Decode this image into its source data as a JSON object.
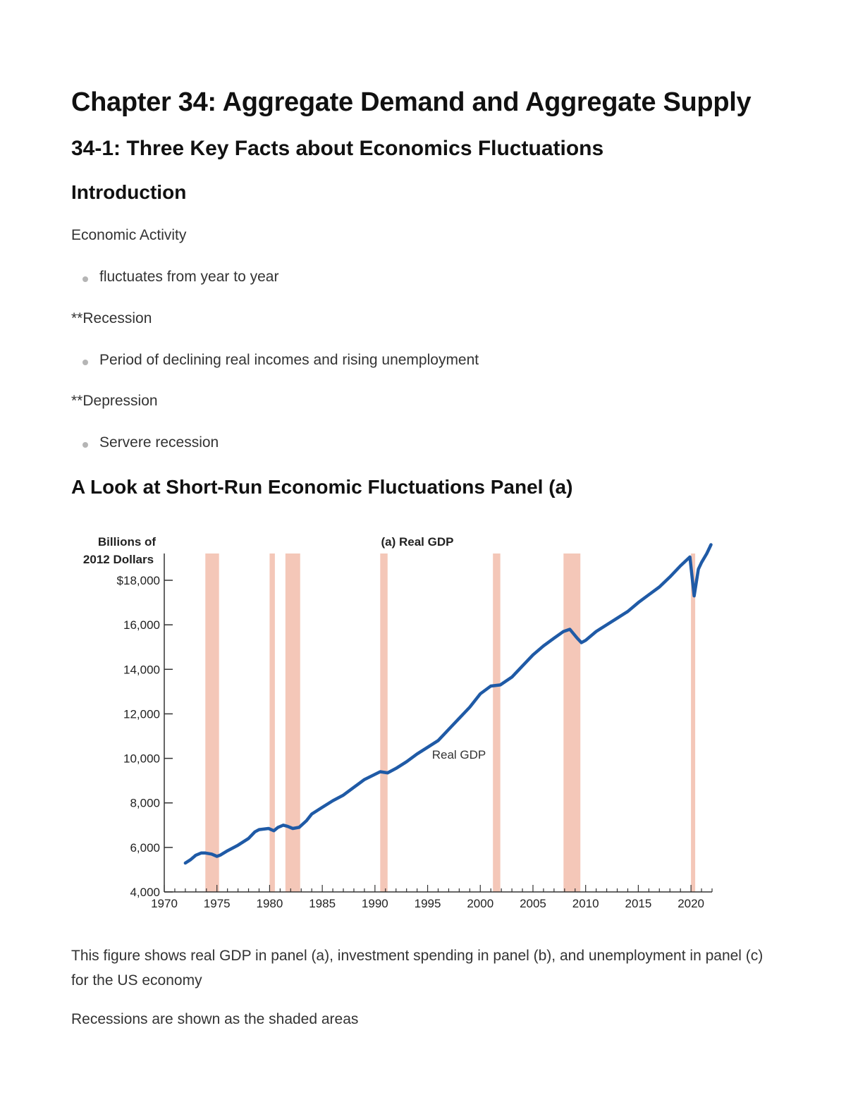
{
  "document": {
    "title": "Chapter 34: Aggregate Demand and Aggregate Supply",
    "section": "34-1: Three Key Facts about Economics Fluctuations",
    "subsection": "Introduction",
    "blocks": [
      {
        "term": "Economic Activity",
        "bullet": "fluctuates from year to year"
      },
      {
        "term": "**Recession",
        "bullet": "Period of declining real incomes and rising unemployment"
      },
      {
        "term": "**Depression",
        "bullet": "Servere recession"
      }
    ],
    "figure_heading": "A Look at Short-Run Economic Fluctuations Panel (a)",
    "caption": "This figure shows real GDP in panel (a), investment spending in panel (b), and unemployment in panel (c) for the US economy",
    "note": "Recessions are shown as the shaded areas"
  },
  "chart_data": {
    "type": "line",
    "title": "(a) Real GDP",
    "ylabel": [
      "Billions of",
      "2012 Dollars"
    ],
    "series_label": "Real GDP",
    "xlim": [
      1970,
      2022
    ],
    "ylim": [
      4000,
      19000
    ],
    "x_ticks": [
      1970,
      1975,
      1980,
      1985,
      1990,
      1995,
      2000,
      2005,
      2010,
      2015,
      2020
    ],
    "x_tick_labels": [
      "1970",
      "1975",
      "1980",
      "1985",
      "1990",
      "1995",
      "2000",
      "2005",
      "2010",
      "2015",
      "2020"
    ],
    "y_ticks": [
      4000,
      6000,
      8000,
      10000,
      12000,
      14000,
      16000,
      18000
    ],
    "y_tick_labels": [
      "4,000",
      "6,000",
      "8,000",
      "10,000",
      "12,000",
      "14,000",
      "16,000",
      "$18,000"
    ],
    "recessions": [
      [
        1973.9,
        1975.2
      ],
      [
        1980.0,
        1980.5
      ],
      [
        1981.5,
        1982.9
      ],
      [
        1990.5,
        1991.2
      ],
      [
        2001.2,
        2001.9
      ],
      [
        2007.9,
        2009.5
      ],
      [
        2020.0,
        2020.4
      ]
    ],
    "line_color": "#1f5aa6",
    "recession_color": "#f4c7b8",
    "series": [
      {
        "x": [
          1972.0,
          1972.5,
          1973.0,
          1973.5,
          1973.9,
          1974.5,
          1975.0,
          1975.3,
          1976.0,
          1977.0,
          1978.0,
          1978.6,
          1979.0,
          1979.9,
          1980.4,
          1980.8,
          1981.3,
          1981.7,
          1982.2,
          1982.8,
          1983.5,
          1984.0,
          1985.0,
          1986.0,
          1987.0,
          1988.0,
          1989.0,
          1990.5,
          1991.2,
          1992.0,
          1993.0,
          1994.0,
          1995.0,
          1996.0,
          1997.0,
          1998.0,
          1999.0,
          2000.0,
          2001.0,
          2001.9,
          2003.0,
          2004.0,
          2005.0,
          2006.0,
          2007.0,
          2007.9,
          2008.5,
          2009.2,
          2009.6,
          2010.0,
          2011.0,
          2012.0,
          2013.0,
          2014.0,
          2015.0,
          2016.0,
          2017.0,
          2018.0,
          2019.0,
          2019.9,
          2020.3,
          2020.7,
          2021.0,
          2021.5,
          2021.9
        ],
        "y": [
          5300,
          5450,
          5650,
          5750,
          5750,
          5700,
          5600,
          5650,
          5850,
          6100,
          6400,
          6700,
          6800,
          6850,
          6750,
          6900,
          7000,
          6950,
          6850,
          6900,
          7200,
          7500,
          7800,
          8100,
          8350,
          8700,
          9050,
          9400,
          9350,
          9550,
          9850,
          10200,
          10500,
          10800,
          11300,
          11800,
          12300,
          12900,
          13250,
          13300,
          13650,
          14150,
          14650,
          15050,
          15400,
          15700,
          15800,
          15400,
          15200,
          15300,
          15700,
          16000,
          16300,
          16600,
          17000,
          17350,
          17700,
          18150,
          18650,
          19050,
          17300,
          18500,
          18800,
          19200,
          19600
        ]
      }
    ]
  }
}
